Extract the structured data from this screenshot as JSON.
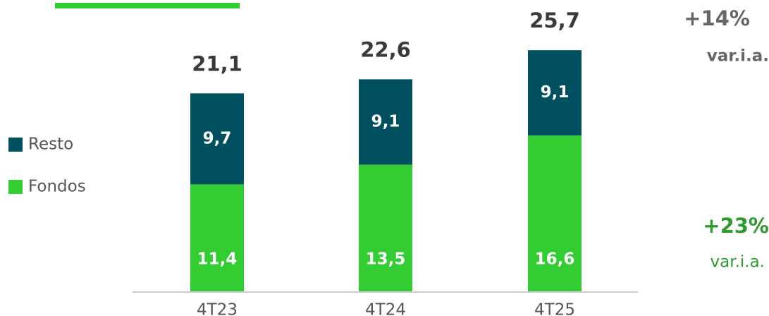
{
  "chart_data": {
    "type": "stacked_bar",
    "categories": [
      "4T23",
      "4T24",
      "4T25"
    ],
    "series": [
      {
        "name": "Fondos",
        "color": "#33cc33",
        "values": [
          11.4,
          13.5,
          16.6
        ],
        "value_labels": [
          "11,4",
          "13,5",
          "16,6"
        ]
      },
      {
        "name": "Resto",
        "color": "#005060",
        "values": [
          9.7,
          9.1,
          9.1
        ],
        "value_labels": [
          "9,7",
          "9,1",
          "9,1"
        ]
      }
    ],
    "totals": [
      21.1,
      22.6,
      25.7
    ],
    "total_labels": [
      "21,1",
      "22,6",
      "25,7"
    ],
    "annotations": [
      {
        "text": "+14%",
        "subtext": "var.i.a."
      },
      {
        "text": "+23%",
        "subtext": "var.i.a."
      }
    ]
  }
}
